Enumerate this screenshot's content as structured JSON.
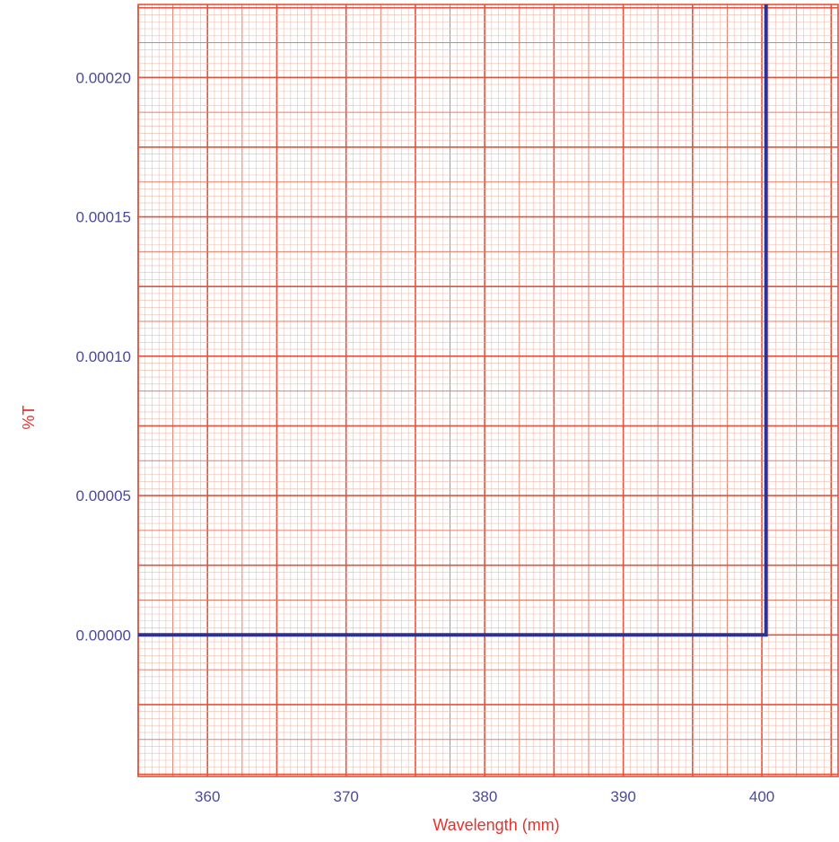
{
  "colors": {
    "grid_major": "#e8503a",
    "grid_mid": "#f07a62",
    "grid_minor": "#f6b8a8",
    "trace": "#2e3192",
    "tick_label": "#4a4a9a",
    "axis_title": "#e8312a",
    "background": "#ffffff"
  },
  "chart_data": {
    "type": "line",
    "xlabel": "Wavelength (mm)",
    "ylabel": "%T",
    "xlim": [
      355,
      405.5
    ],
    "ylim": [
      -5.08e-05,
      0.0002262
    ],
    "x_ticks": [
      360,
      370,
      380,
      390,
      400
    ],
    "x_tick_labels": [
      "360",
      "370",
      "380",
      "390",
      "400"
    ],
    "y_ticks": [
      0,
      5e-05,
      0.0001,
      0.00015,
      0.0002
    ],
    "y_tick_labels": [
      "0.00000",
      "0.00005",
      "0.00010",
      "0.00015",
      "0.00020"
    ],
    "grid": true,
    "series": [
      {
        "x": [
          355,
          400.3,
          400.3
        ],
        "y": [
          0,
          0,
          0.0002262
        ]
      }
    ]
  }
}
